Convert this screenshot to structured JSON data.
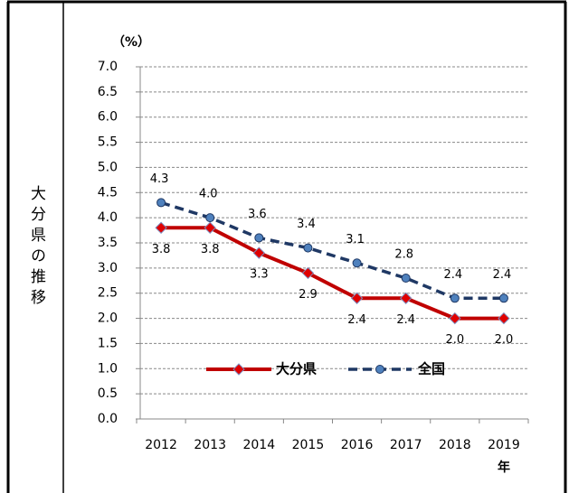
{
  "row_label": "大分県の推移",
  "chart_data": {
    "type": "line",
    "unit_label": "（%）",
    "x_axis_label": "年",
    "categories": [
      "2012",
      "2013",
      "2014",
      "2015",
      "2016",
      "2017",
      "2018",
      "2019"
    ],
    "series": [
      {
        "name": "大分県",
        "color": "#c00000",
        "marker": "diamond",
        "values": [
          3.8,
          3.8,
          3.3,
          2.9,
          2.4,
          2.4,
          2.0,
          2.0
        ],
        "value_labels": [
          "3.8",
          "3.8",
          "3.3",
          "2.9",
          "2.4",
          "2.4",
          "2.0",
          "2.0"
        ]
      },
      {
        "name": "全国",
        "color": "#1f3864",
        "marker": "circle",
        "dashed": true,
        "values": [
          4.3,
          4.0,
          3.6,
          3.4,
          3.1,
          2.8,
          2.4,
          2.4
        ],
        "value_labels": [
          "4.3",
          "4.0",
          "3.6",
          "3.4",
          "3.1",
          "2.8",
          "2.4",
          "2.4"
        ]
      }
    ],
    "ylim": [
      0,
      7
    ],
    "yticks": [
      {
        "value": 0,
        "label": "0.0"
      },
      {
        "value": 0.5,
        "label": "0.5"
      },
      {
        "value": 1,
        "label": "1.0"
      },
      {
        "value": 1.5,
        "label": "1.5"
      },
      {
        "value": 2,
        "label": "2.0"
      },
      {
        "value": 2.5,
        "label": "2.5"
      },
      {
        "value": 3,
        "label": "3.0"
      },
      {
        "value": 3.5,
        "label": "3.5"
      },
      {
        "value": 4,
        "label": "4.0"
      },
      {
        "value": 4.5,
        "label": "4.5"
      },
      {
        "value": 5,
        "label": "5.0"
      },
      {
        "value": 5.5,
        "label": "5.5"
      },
      {
        "value": 6,
        "label": "6.0"
      },
      {
        "value": 6.5,
        "label": "6.5"
      },
      {
        "value": 7,
        "label": "7.0"
      }
    ],
    "grid": true,
    "legend": "bottom"
  }
}
